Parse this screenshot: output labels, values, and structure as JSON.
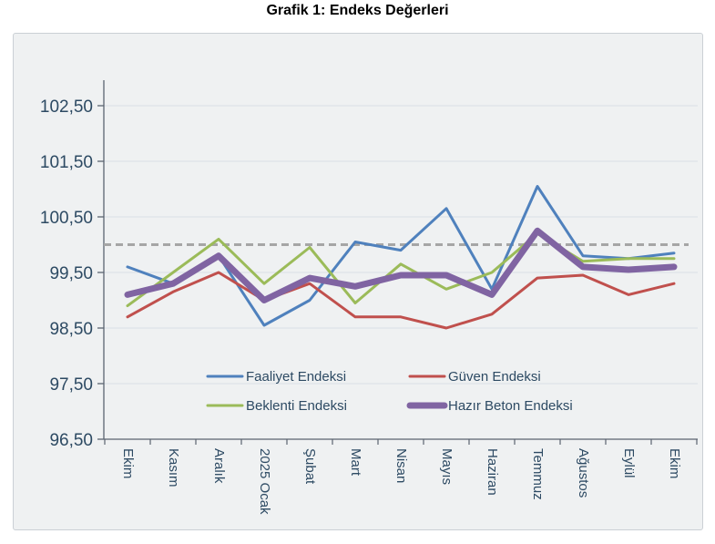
{
  "page": {
    "title": "Grafik 1: Endeks Değerleri"
  },
  "chart_data": {
    "type": "line",
    "title": "Grafik 1: Endeks Değerleri",
    "xlabel": "",
    "ylabel": "",
    "grid": true,
    "legend_position": "inside-bottom-center",
    "ylim": [
      96.5,
      103.0
    ],
    "categories": [
      "Ekim",
      "Kasım",
      "Aralık",
      "2025 Ocak",
      "Şubat",
      "Mart",
      "Nisan",
      "Mayıs",
      "Haziran",
      "Temmuz",
      "Ağustos",
      "Eylül",
      "Ekim"
    ],
    "y_ticks": [
      {
        "value": 96.5,
        "label": "96,50"
      },
      {
        "value": 97.5,
        "label": "97,50"
      },
      {
        "value": 98.5,
        "label": "98,50"
      },
      {
        "value": 99.5,
        "label": "99,50"
      },
      {
        "value": 100.5,
        "label": "100,50"
      },
      {
        "value": 101.5,
        "label": "101,50"
      },
      {
        "value": 102.5,
        "label": "102,50"
      }
    ],
    "reference_line": {
      "value": 100.0,
      "style": "dashed",
      "color": "#a6a6a6"
    },
    "series": [
      {
        "name": "Faaliyet Endeksi",
        "color": "#4F81BD",
        "width": 3,
        "values": [
          99.6,
          99.3,
          99.8,
          98.55,
          99.0,
          100.05,
          99.9,
          100.65,
          99.2,
          101.05,
          99.8,
          99.75,
          99.85
        ]
      },
      {
        "name": "Güven Endeksi",
        "color": "#C0504D",
        "width": 3,
        "values": [
          98.7,
          99.15,
          99.5,
          99.0,
          99.3,
          98.7,
          98.7,
          98.5,
          98.75,
          99.4,
          99.45,
          99.1,
          99.3
        ]
      },
      {
        "name": "Beklenti Endeksi",
        "color": "#9BBB59",
        "width": 3,
        "values": [
          98.9,
          99.5,
          100.1,
          99.3,
          99.95,
          98.95,
          99.65,
          99.2,
          99.5,
          100.2,
          99.7,
          99.75,
          99.75
        ]
      },
      {
        "name": "Hazır Beton Endeksi",
        "color": "#8064A2",
        "width": 7,
        "values": [
          99.1,
          99.3,
          99.8,
          99.0,
          99.4,
          99.25,
          99.45,
          99.45,
          99.1,
          100.25,
          99.6,
          99.55,
          99.6
        ]
      }
    ],
    "colors": {
      "plot_background": "#eff1f2",
      "plot_border": "#cbd0d5",
      "gridline": "#dde3e9",
      "axis": "#5b6470",
      "tick_label": "#2d4a63",
      "title": "#000000"
    }
  }
}
